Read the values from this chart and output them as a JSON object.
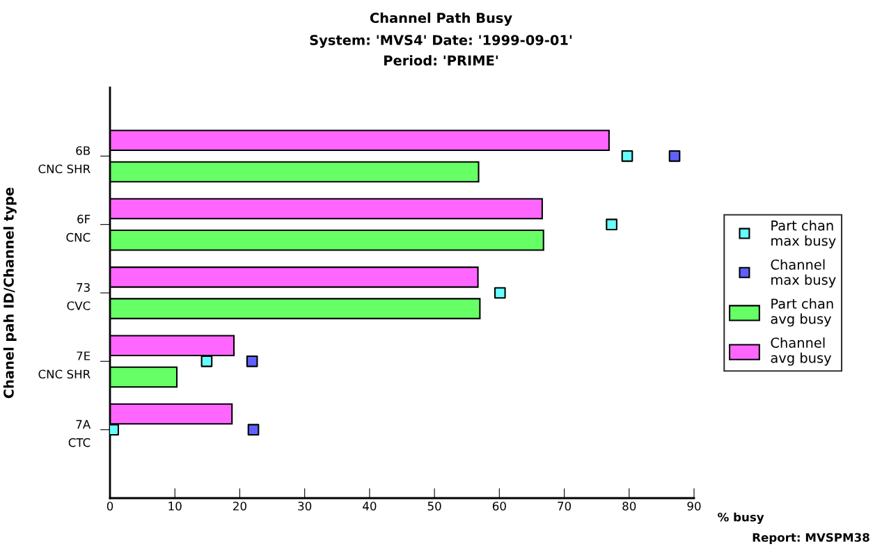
{
  "chart_data": {
    "type": "bar",
    "orientation": "horizontal",
    "title": "Channel Path Busy",
    "subtitle": "System: 'MVS4' Date: '1999-09-01'\nPeriod: 'PRIME'",
    "xlabel": "% busy",
    "ylabel": "Chanel pah ID/Channel type",
    "categories": [
      "6B\nCNC SHR",
      "6F\nCNC",
      "73\nCVC",
      "7E\nCNC SHR",
      "7A\nCTC"
    ],
    "series": [
      {
        "name": "Part chan\nmax busy",
        "type": "scatter",
        "marker": "square",
        "color": "#66ffff",
        "values": [
          79.7,
          77.3,
          60.1,
          14.9,
          0.5
        ]
      },
      {
        "name": "Channel\nmax busy",
        "type": "scatter",
        "marker": "square",
        "color": "#6060ff",
        "values": [
          87.0,
          null,
          null,
          21.9,
          22.1
        ]
      },
      {
        "name": "Part chan\navg busy",
        "color": "#66ff66",
        "values": [
          56.8,
          66.8,
          57.0,
          10.3,
          null
        ]
      },
      {
        "name": "Channel\navg busy",
        "color": "#ff66ff",
        "values": [
          76.9,
          66.6,
          56.7,
          19.1,
          18.8
        ]
      }
    ],
    "xlim": [
      0,
      90
    ],
    "xticks": [
      0,
      10,
      20,
      30,
      40,
      50,
      60,
      70,
      80,
      90
    ],
    "grid": false,
    "legend": "right",
    "annotations": [
      "Report: MVSPM38"
    ]
  }
}
